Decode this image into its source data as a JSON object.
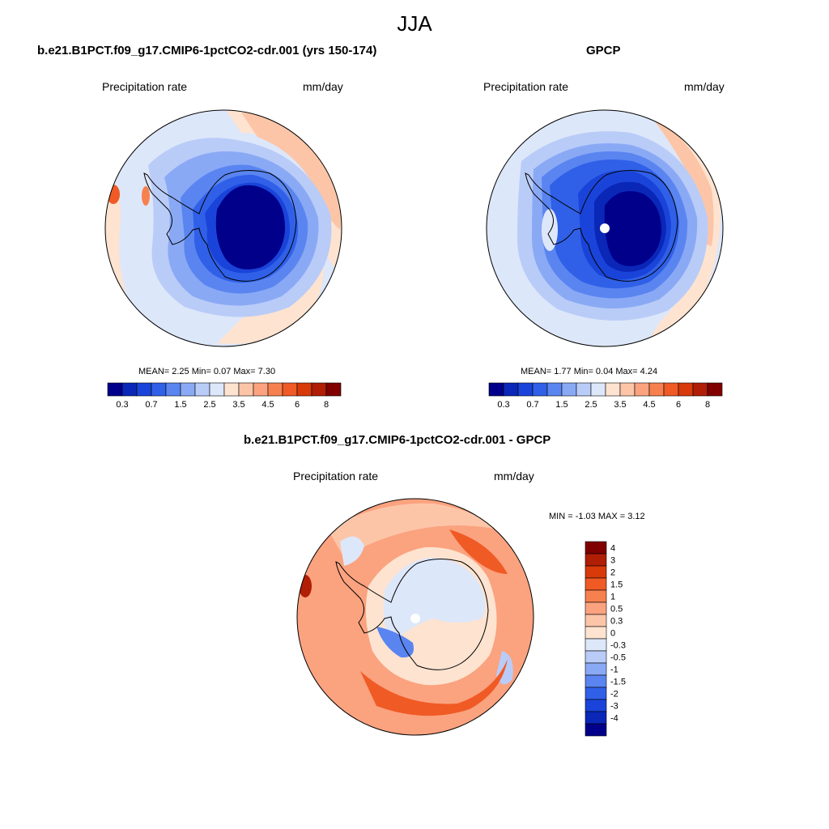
{
  "season": "JJA",
  "panels": [
    {
      "id": "model",
      "title": "b.e21.B1PCT.f09_g17.CMIP6-1pctCO2-cdr.001 (yrs 150-174)",
      "left_label": "Precipitation rate",
      "right_label": "mm/day",
      "stats": "MEAN=   2.25   Min=    0.07   Max=    7.30",
      "mean": 2.25,
      "min": 0.07,
      "max": 7.3
    },
    {
      "id": "obs",
      "title": "GPCP",
      "left_label": "Precipitation rate",
      "right_label": "mm/day",
      "stats": "MEAN=   1.77   Min=    0.04   Max=    4.24",
      "mean": 1.77,
      "min": 0.04,
      "max": 4.24
    },
    {
      "id": "diff",
      "title": "b.e21.B1PCT.f09_g17.CMIP6-1pctCO2-cdr.001 - GPCP",
      "left_label": "Precipitation rate",
      "right_label": "mm/day",
      "stats": "MIN =  -1.03 MAX =    3.12",
      "min": -1.03,
      "max": 3.12
    }
  ],
  "chart_data": [
    {
      "type": "heatmap",
      "projection": "south-polar stereographic",
      "title": "b.e21.B1PCT.f09_g17.CMIP6-1pctCO2-cdr.001 (yrs 150-174)",
      "variable": "Precipitation rate",
      "units": "mm/day",
      "colorbar_orientation": "horizontal",
      "colorbar_levels": [
        "0.3",
        "0.7",
        "1.5",
        "2.5",
        "3.5",
        "4.5",
        "6",
        "8"
      ],
      "colorbar_colors": [
        "#00008b",
        "#0a27b8",
        "#1a44d9",
        "#3060e8",
        "#5a85f0",
        "#8aa9f5",
        "#b9ccf8",
        "#dde7fa",
        "#fde3d0",
        "#fcc5a8",
        "#fba27f",
        "#f7804f",
        "#f05a25",
        "#d83a0a",
        "#b01e06",
        "#800000"
      ]
    },
    {
      "type": "heatmap",
      "projection": "south-polar stereographic",
      "title": "GPCP",
      "variable": "Precipitation rate",
      "units": "mm/day",
      "colorbar_orientation": "horizontal",
      "colorbar_levels": [
        "0.3",
        "0.7",
        "1.5",
        "2.5",
        "3.5",
        "4.5",
        "6",
        "8"
      ],
      "colorbar_colors": [
        "#00008b",
        "#0a27b8",
        "#1a44d9",
        "#3060e8",
        "#5a85f0",
        "#8aa9f5",
        "#b9ccf8",
        "#dde7fa",
        "#fde3d0",
        "#fcc5a8",
        "#fba27f",
        "#f7804f",
        "#f05a25",
        "#d83a0a",
        "#b01e06",
        "#800000"
      ]
    },
    {
      "type": "heatmap",
      "projection": "south-polar stereographic",
      "title": "b.e21.B1PCT.f09_g17.CMIP6-1pctCO2-cdr.001 - GPCP",
      "variable": "Precipitation rate",
      "units": "mm/day",
      "colorbar_orientation": "vertical",
      "colorbar_levels": [
        "4",
        "3",
        "2",
        "1.5",
        "1",
        "0.5",
        "0.3",
        "0",
        "-0.3",
        "-0.5",
        "-1",
        "-1.5",
        "-2",
        "-3",
        "-4"
      ],
      "colorbar_colors": [
        "#800000",
        "#b01e06",
        "#d83a0a",
        "#f05a25",
        "#f7804f",
        "#fba27f",
        "#fcc5a8",
        "#fde3d0",
        "#dde7fa",
        "#b9ccf8",
        "#8aa9f5",
        "#5a85f0",
        "#3060e8",
        "#1a44d9",
        "#0a27b8",
        "#00008b"
      ]
    }
  ]
}
